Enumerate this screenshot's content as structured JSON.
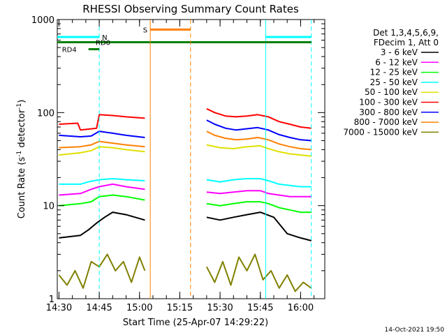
{
  "chart_data": {
    "type": "line",
    "title": "RHESSI Observing Summary Count Rates",
    "xlabel": "Start Time (25-Apr-07 14:29:22)",
    "ylabel_main": "Count Rate (s",
    "ylabel_sup1": "-1",
    "ylabel_mid": " detector",
    "ylabel_sup2": "-1",
    "ylabel_end": ")",
    "y_log": true,
    "ylim": [
      1,
      1000
    ],
    "y_ticks": [
      {
        "value": 1,
        "label": "1"
      },
      {
        "value": 10,
        "label": "10"
      },
      {
        "value": 100,
        "label": "100"
      },
      {
        "value": 1000,
        "label": "1000"
      }
    ],
    "xlim": [
      "14:29:22",
      "16:09:00"
    ],
    "x_ticks": [
      {
        "value": "14:30",
        "label": "14:30"
      },
      {
        "value": "14:45",
        "label": "14:45"
      },
      {
        "value": "15:00",
        "label": "15:00"
      },
      {
        "value": "15:15",
        "label": "15:15"
      },
      {
        "value": "15:30",
        "label": "15:30"
      },
      {
        "value": "15:45",
        "label": "15:45"
      },
      {
        "value": "16:00",
        "label": "16:00"
      }
    ],
    "legend": {
      "header": [
        "Det 1,3,4,5,6,9,",
        "FDecim 1, Att 0"
      ],
      "placement": "right"
    },
    "series": [
      {
        "name": "3 - 6 keV",
        "color": "#000000",
        "segments": [
          {
            "x": [
              "14:30",
              "14:38",
              "14:41",
              "14:44",
              "14:47",
              "14:50",
              "14:55",
              "15:02"
            ],
            "y": [
              4.5,
              4.8,
              5.5,
              6.5,
              7.5,
              8.5,
              8.0,
              7.0
            ]
          },
          {
            "x": [
              "15:25",
              "15:30",
              "15:35",
              "15:40",
              "15:45",
              "15:50",
              "15:55",
              "16:00",
              "16:04"
            ],
            "y": [
              7.5,
              7.0,
              7.5,
              8.0,
              8.5,
              7.5,
              5.0,
              4.5,
              4.2
            ]
          }
        ]
      },
      {
        "name": "6 - 12 keV",
        "color": "#ff00ff",
        "segments": [
          {
            "x": [
              "14:30",
              "14:38",
              "14:42",
              "14:45",
              "14:50",
              "14:55",
              "15:02"
            ],
            "y": [
              13,
              13.5,
              15,
              16,
              17,
              16,
              15
            ]
          },
          {
            "x": [
              "15:25",
              "15:30",
              "15:35",
              "15:40",
              "15:45",
              "15:48",
              "15:52",
              "15:56",
              "16:00",
              "16:04"
            ],
            "y": [
              14,
              13.5,
              14,
              14.5,
              14.5,
              13.5,
              13,
              12.5,
              12.5,
              12.5
            ]
          }
        ]
      },
      {
        "name": "12 - 25 keV",
        "color": "#00ff00",
        "segments": [
          {
            "x": [
              "14:30",
              "14:38",
              "14:42",
              "14:45",
              "14:50",
              "14:55",
              "15:02"
            ],
            "y": [
              10,
              10.5,
              11,
              12.5,
              13,
              12.5,
              11.5
            ]
          },
          {
            "x": [
              "15:25",
              "15:30",
              "15:35",
              "15:40",
              "15:45",
              "15:48",
              "15:52",
              "15:56",
              "16:00",
              "16:04"
            ],
            "y": [
              10.5,
              10,
              10.5,
              11,
              11,
              10.5,
              9.5,
              9,
              8.5,
              8.5
            ]
          }
        ]
      },
      {
        "name": "25 - 50 keV",
        "color": "#00ffff",
        "segments": [
          {
            "x": [
              "14:30",
              "14:38",
              "14:41",
              "14:45",
              "14:50",
              "14:55",
              "15:02"
            ],
            "y": [
              17,
              17,
              18,
              19,
              19.5,
              19,
              18.5
            ]
          },
          {
            "x": [
              "15:25",
              "15:30",
              "15:35",
              "15:40",
              "15:45",
              "15:48",
              "15:52",
              "15:56",
              "16:00",
              "16:04"
            ],
            "y": [
              19,
              18,
              19,
              19.5,
              19.5,
              18.5,
              17,
              16.5,
              16,
              16
            ]
          }
        ]
      },
      {
        "name": "50 - 100 keV",
        "color": "#e0e000",
        "segments": [
          {
            "x": [
              "14:30",
              "14:38",
              "14:42",
              "14:45",
              "14:50",
              "14:55",
              "15:02"
            ],
            "y": [
              35,
              37,
              39,
              43,
              42,
              40,
              38
            ]
          },
          {
            "x": [
              "15:25",
              "15:30",
              "15:35",
              "15:40",
              "15:45",
              "15:48",
              "15:52",
              "15:56",
              "16:00",
              "16:04"
            ],
            "y": [
              45,
              42,
              41,
              43,
              44,
              41,
              38,
              36,
              35,
              34
            ]
          }
        ]
      },
      {
        "name": "100 - 300 keV",
        "color": "#ff0000",
        "segments": [
          {
            "x": [
              "14:30",
              "14:37",
              "14:38",
              "14:44",
              "14:45",
              "14:50",
              "14:55",
              "15:02"
            ],
            "y": [
              75,
              77,
              65,
              68,
              95,
              93,
              90,
              87
            ]
          },
          {
            "x": [
              "15:25",
              "15:28",
              "15:32",
              "15:36",
              "15:40",
              "15:44",
              "15:48",
              "15:52",
              "15:56",
              "16:00",
              "16:04"
            ],
            "y": [
              110,
              100,
              92,
              90,
              92,
              95,
              90,
              80,
              75,
              70,
              68
            ]
          }
        ]
      },
      {
        "name": "300 - 800 keV",
        "color": "#0000ff",
        "segments": [
          {
            "x": [
              "14:30",
              "14:38",
              "14:42",
              "14:45",
              "14:50",
              "14:55",
              "15:02"
            ],
            "y": [
              57,
              55,
              56,
              63,
              60,
              57,
              54
            ]
          },
          {
            "x": [
              "15:25",
              "15:28",
              "15:32",
              "15:36",
              "15:40",
              "15:44",
              "15:48",
              "15:52",
              "15:56",
              "16:00",
              "16:04"
            ],
            "y": [
              83,
              75,
              68,
              65,
              67,
              69,
              65,
              58,
              54,
              51,
              50
            ]
          }
        ]
      },
      {
        "name": "800 - 7000 keV",
        "color": "#ff8000",
        "segments": [
          {
            "x": [
              "14:30",
              "14:38",
              "14:42",
              "14:45",
              "14:50",
              "14:55",
              "15:02"
            ],
            "y": [
              42,
              43,
              45,
              49,
              47,
              45,
              43
            ]
          },
          {
            "x": [
              "15:25",
              "15:28",
              "15:32",
              "15:36",
              "15:40",
              "15:44",
              "15:48",
              "15:52",
              "15:56",
              "16:00",
              "16:04"
            ],
            "y": [
              63,
              57,
              53,
              51,
              52,
              54,
              51,
              46,
              43,
              41,
              40
            ]
          }
        ]
      },
      {
        "name": "7000 - 15000 keV",
        "color": "#808000",
        "segments": [
          {
            "x": [
              "14:30",
              "14:33",
              "14:36",
              "14:39",
              "14:42",
              "14:45",
              "14:48",
              "14:51",
              "14:54",
              "14:57",
              "15:00",
              "15:02"
            ],
            "y": [
              1.8,
              1.4,
              2,
              1.3,
              2.5,
              2.2,
              3,
              2,
              2.5,
              1.5,
              2.8,
              2
            ]
          },
          {
            "x": [
              "15:25",
              "15:28",
              "15:31",
              "15:34",
              "15:37",
              "15:40",
              "15:43",
              "15:46",
              "15:49",
              "15:52",
              "15:55",
              "15:58",
              "16:01",
              "16:04"
            ],
            "y": [
              2.2,
              1.5,
              2.5,
              1.4,
              2.8,
              2,
              3,
              1.6,
              2,
              1.3,
              1.8,
              1.2,
              1.5,
              1.3
            ]
          }
        ]
      }
    ],
    "markers": [
      {
        "label": "N",
        "color": "#00ffff",
        "level": 650,
        "x_start": "14:29:22",
        "x_end": "14:45",
        "solid_x": [],
        "dashed_x": [
          "14:45"
        ]
      },
      {
        "label": "",
        "color": "#00ffff",
        "level": 650,
        "x_start": "15:47",
        "x_end": "16:04",
        "solid_x": [
          "15:47"
        ],
        "dashed_x": [
          "16:04"
        ]
      },
      {
        "label": "RD0",
        "color": "#008000",
        "level": 570,
        "x_start": "14:29:22",
        "x_end": "16:04",
        "solid_x": [],
        "dashed_x": []
      },
      {
        "label": "RD4",
        "color": "#008000",
        "level": 480,
        "x_start": "14:41",
        "x_end": "14:45",
        "solid_x": [],
        "dashed_x": []
      },
      {
        "label": "S",
        "color": "#ff8000",
        "level": 780,
        "x_start": "15:04",
        "x_end": "15:19",
        "solid_x": [
          "15:04"
        ],
        "dashed_x": [
          "15:19"
        ]
      }
    ],
    "footer_stamp": "14-Oct-2021 19:50"
  }
}
